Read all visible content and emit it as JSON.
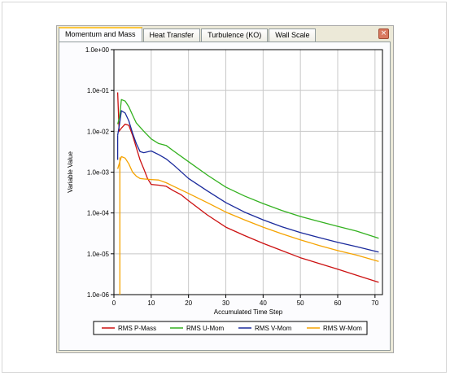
{
  "tabs": [
    {
      "label": "Momentum and Mass",
      "active": true
    },
    {
      "label": "Heat Transfer",
      "active": false
    },
    {
      "label": "Turbulence (KO)",
      "active": false
    },
    {
      "label": "Wall Scale",
      "active": false
    }
  ],
  "close_symbol": "×",
  "colors": {
    "accent_tab": "#ffc73c",
    "panel_bg": "#ece9d8",
    "grid": "#c8c8c8"
  },
  "chart_data": {
    "type": "line",
    "xlabel": "Accumulated Time Step",
    "ylabel": "Variable Value",
    "xlim": [
      0,
      72
    ],
    "ylim": [
      1e-06,
      1
    ],
    "yscale": "log",
    "grid": true,
    "legend_position": "bottom",
    "x_ticks": [
      0,
      10,
      20,
      30,
      40,
      50,
      60,
      70
    ],
    "x_tick_labels": [
      "0",
      "10",
      "20",
      "30",
      "40",
      "50",
      "60",
      "70"
    ],
    "y_ticks": [
      1,
      0.1,
      0.01,
      0.001,
      0.0001,
      1e-05,
      1e-06
    ],
    "y_tick_labels": [
      "1.0e+00",
      "1.0e-01",
      "1.0e-02",
      "1.0e-03",
      "1.0e-04",
      "1.0e-05",
      "1.0e-06"
    ],
    "series": [
      {
        "name": "RMS P-Mass",
        "color": "#cc1111",
        "x": [
          1,
          1.4,
          2,
          3,
          4,
          5,
          6,
          7,
          8,
          9,
          10,
          12,
          14,
          16,
          18,
          20,
          25,
          30,
          35,
          40,
          45,
          50,
          55,
          60,
          65,
          71
        ],
        "y": [
          0.09,
          0.01,
          0.012,
          0.015,
          0.014,
          0.008,
          0.004,
          0.002,
          0.0012,
          0.0007,
          0.0005,
          0.00048,
          0.00045,
          0.00035,
          0.00028,
          0.0002,
          9e-05,
          4.5e-05,
          2.8e-05,
          1.8e-05,
          1.2e-05,
          8e-06,
          5.8e-06,
          4.2e-06,
          3e-06,
          2e-06
        ]
      },
      {
        "name": "RMS U-Mom",
        "color": "#33b11f",
        "x": [
          1,
          1.5,
          2,
          3,
          4,
          5,
          6,
          8,
          10,
          12,
          14,
          16,
          20,
          25,
          30,
          35,
          40,
          45,
          50,
          55,
          60,
          65,
          71
        ],
        "y": [
          0.015,
          0.022,
          0.06,
          0.055,
          0.04,
          0.025,
          0.016,
          0.01,
          0.0065,
          0.005,
          0.0045,
          0.0033,
          0.0018,
          0.00085,
          0.00043,
          0.00026,
          0.00017,
          0.000115,
          8.2e-05,
          6.2e-05,
          4.7e-05,
          3.6e-05,
          2.4e-05
        ]
      },
      {
        "name": "RMS V-Mom",
        "color": "#1a2a9c",
        "x": [
          1,
          1.5,
          2,
          3,
          4,
          5,
          6,
          7,
          8,
          10,
          12,
          14,
          16,
          20,
          25,
          30,
          35,
          40,
          45,
          50,
          55,
          60,
          65,
          71
        ],
        "y": [
          0.008,
          0.015,
          0.032,
          0.028,
          0.018,
          0.009,
          0.005,
          0.0032,
          0.003,
          0.0033,
          0.0027,
          0.0021,
          0.0015,
          0.0007,
          0.00035,
          0.00018,
          0.000105,
          6.8e-05,
          4.6e-05,
          3.3e-05,
          2.5e-05,
          1.9e-05,
          1.5e-05,
          1.1e-05
        ]
      },
      {
        "name": "RMS W-Mom",
        "color": "#f5a300",
        "x": [
          1,
          1.5,
          2,
          3,
          4,
          5,
          6,
          7,
          8,
          10,
          12,
          14,
          16,
          20,
          25,
          30,
          35,
          40,
          45,
          50,
          55,
          60,
          65,
          71
        ],
        "y": [
          0.0012,
          0.0017,
          0.0024,
          0.0022,
          0.0016,
          0.001,
          0.0008,
          0.0007,
          0.00068,
          0.00066,
          0.00064,
          0.00055,
          0.00045,
          0.0003,
          0.00018,
          0.000105,
          6.8e-05,
          4.5e-05,
          3.1e-05,
          2.2e-05,
          1.6e-05,
          1.2e-05,
          9.3e-06,
          6.5e-06
        ]
      }
    ],
    "extra_segments": [
      {
        "series": "RMS W-Mom",
        "x": [
          1.6,
          1.6
        ],
        "y": [
          1e-06,
          0.0023
        ]
      },
      {
        "series": "RMS V-Mom",
        "x": [
          1,
          1
        ],
        "y": [
          0.002,
          0.008
        ]
      }
    ]
  }
}
